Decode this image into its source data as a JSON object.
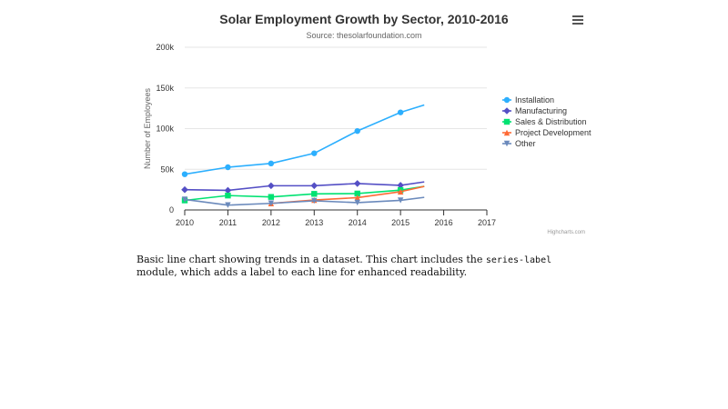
{
  "chart_data": {
    "type": "line",
    "title": "Solar Employment Growth by Sector, 2010-2016",
    "subtitle": "Source: thesolarfoundation.com",
    "xlabel": "",
    "ylabel": "Number of Employees",
    "xlim": [
      2010,
      2017
    ],
    "ylim": [
      0,
      200000
    ],
    "x_ticks": [
      "2010",
      "2011",
      "2012",
      "2013",
      "2014",
      "2015",
      "2016",
      "2017"
    ],
    "y_ticks": [
      "0",
      "50k",
      "100k",
      "150k",
      "200k"
    ],
    "y_tick_values": [
      0,
      50000,
      100000,
      150000,
      200000
    ],
    "x": [
      2010,
      2011,
      2012,
      2013,
      2014,
      2015,
      2015.55
    ],
    "series": [
      {
        "name": "Installation",
        "color": "#2caffe",
        "marker": "circle",
        "values": [
          43934,
          52503,
          57177,
          69658,
          97031,
          119931,
          129000
        ]
      },
      {
        "name": "Manufacturing",
        "color": "#544fc5",
        "marker": "diamond",
        "values": [
          24916,
          24064,
          29742,
          29851,
          32490,
          30282,
          34500
        ]
      },
      {
        "name": "Sales & Distribution",
        "color": "#00e272",
        "marker": "square",
        "values": [
          11744,
          17722,
          16005,
          19771,
          20185,
          24377,
          29000
        ]
      },
      {
        "name": "Project Development",
        "color": "#fe6a35",
        "marker": "triangle",
        "values": [
          null,
          null,
          7988,
          12169,
          15112,
          22452,
          29000
        ]
      },
      {
        "name": "Other",
        "color": "#6b8abc",
        "marker": "triangle-down",
        "values": [
          12908,
          5948,
          8105,
          11248,
          8989,
          11816,
          15500
        ]
      }
    ],
    "legend_position": "right",
    "credits": "Highcharts.com",
    "menu_icon": "hamburger-menu-icon"
  },
  "description": {
    "before": "Basic line chart showing trends in a dataset. This chart includes the ",
    "code": "series-label",
    "after": " module, which adds a label to each line for enhanced readability."
  }
}
